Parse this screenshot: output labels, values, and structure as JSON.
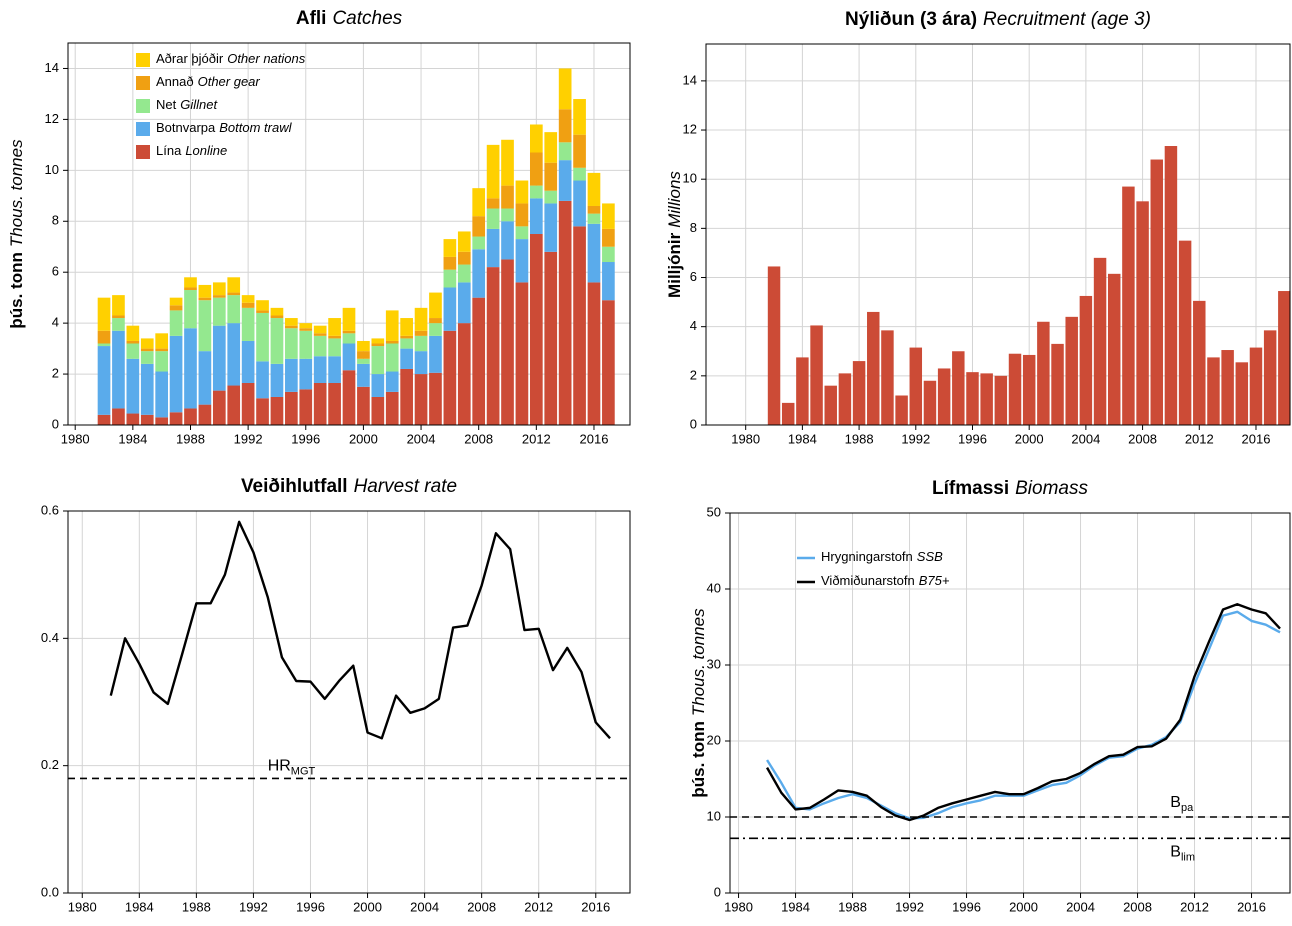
{
  "chart_data": [
    {
      "type": "bar",
      "stacked": true,
      "title_is": "Afli",
      "title_en": "Catches",
      "ylabel_is": "þús. tonn",
      "ylabel_en": "Thous. tonnes",
      "x": [
        1982,
        1983,
        1984,
        1985,
        1986,
        1987,
        1988,
        1989,
        1990,
        1991,
        1992,
        1993,
        1994,
        1995,
        1996,
        1997,
        1998,
        1999,
        2000,
        2001,
        2002,
        2003,
        2004,
        2005,
        2006,
        2007,
        2008,
        2009,
        2010,
        2011,
        2012,
        2013,
        2014,
        2015,
        2016,
        2017
      ],
      "series": [
        {
          "name": "Lína",
          "name_en": "Lonline",
          "color": "#cc4b36",
          "values": [
            0.4,
            0.65,
            0.45,
            0.4,
            0.3,
            0.5,
            0.65,
            0.8,
            1.35,
            1.55,
            1.65,
            1.05,
            1.1,
            1.3,
            1.4,
            1.65,
            1.65,
            2.15,
            1.5,
            1.1,
            1.3,
            2.2,
            2.0,
            2.05,
            3.7,
            4.0,
            5.0,
            6.2,
            6.5,
            5.6,
            7.5,
            6.8,
            8.8,
            7.8,
            5.6,
            4.9
          ]
        },
        {
          "name": "Botnvarpa",
          "name_en": "Bottom trawl",
          "color": "#5aabeb",
          "values": [
            2.7,
            3.05,
            2.15,
            2.0,
            1.8,
            3.0,
            3.15,
            2.1,
            2.55,
            2.45,
            1.65,
            1.45,
            1.3,
            1.3,
            1.2,
            1.05,
            1.05,
            1.05,
            0.9,
            0.9,
            0.8,
            0.8,
            0.9,
            1.45,
            1.7,
            1.6,
            1.9,
            1.5,
            1.5,
            1.7,
            1.4,
            1.9,
            1.6,
            1.8,
            2.3,
            1.5
          ]
        },
        {
          "name": "Net",
          "name_en": "Gillnet",
          "color": "#94e88f",
          "values": [
            0.1,
            0.5,
            0.6,
            0.5,
            0.8,
            1.0,
            1.5,
            2.0,
            1.1,
            1.1,
            1.3,
            1.9,
            1.8,
            1.2,
            1.1,
            0.8,
            0.7,
            0.4,
            0.2,
            1.1,
            1.1,
            0.4,
            0.6,
            0.5,
            0.7,
            0.7,
            0.5,
            0.8,
            0.5,
            0.5,
            0.5,
            0.5,
            0.7,
            0.5,
            0.4,
            0.6
          ]
        },
        {
          "name": "Annað",
          "name_en": "Other gear",
          "color": "#f0a012",
          "values": [
            0.5,
            0.1,
            0.1,
            0.1,
            0.1,
            0.2,
            0.1,
            0.1,
            0.1,
            0.1,
            0.2,
            0.1,
            0.1,
            0.1,
            0.1,
            0.1,
            0.1,
            0.1,
            0.3,
            0.1,
            0.1,
            0.1,
            0.2,
            0.2,
            0.5,
            0.5,
            0.8,
            0.4,
            0.9,
            0.9,
            1.3,
            1.1,
            1.3,
            1.3,
            0.3,
            0.7
          ]
        },
        {
          "name": "Aðrar þjóðir",
          "name_en": "Other nations",
          "color": "#ffd000",
          "values": [
            1.3,
            0.8,
            0.6,
            0.4,
            0.6,
            0.3,
            0.4,
            0.5,
            0.5,
            0.6,
            0.3,
            0.4,
            0.3,
            0.3,
            0.2,
            0.3,
            0.7,
            0.9,
            0.4,
            0.2,
            1.2,
            0.7,
            0.9,
            1.0,
            0.7,
            0.8,
            1.1,
            2.1,
            1.8,
            0.9,
            1.1,
            1.2,
            1.6,
            1.4,
            1.3,
            1.0
          ]
        }
      ],
      "xlim": [
        1979.5,
        2018.5
      ],
      "xticks": [
        1980,
        1984,
        1988,
        1992,
        1996,
        2000,
        2004,
        2008,
        2012,
        2016
      ],
      "ylim": [
        0,
        15
      ],
      "yticks": [
        0,
        2,
        4,
        6,
        8,
        10,
        12,
        14
      ],
      "grid": true,
      "legend": "upper left"
    },
    {
      "type": "bar",
      "title_is": "Nýliðun (3 ára)",
      "title_en": "Recruitment (age 3)",
      "ylabel_is": "Milljónir",
      "ylabel_en": "Millions",
      "x": [
        1982,
        1983,
        1984,
        1985,
        1986,
        1987,
        1988,
        1989,
        1990,
        1991,
        1992,
        1993,
        1994,
        1995,
        1996,
        1997,
        1998,
        1999,
        2000,
        2001,
        2002,
        2003,
        2004,
        2005,
        2006,
        2007,
        2008,
        2009,
        2010,
        2011,
        2012,
        2013,
        2014,
        2015,
        2016,
        2017,
        2018
      ],
      "values": [
        6.45,
        0.9,
        2.75,
        4.05,
        1.6,
        2.1,
        2.6,
        4.6,
        3.85,
        1.2,
        3.15,
        1.8,
        2.3,
        3.0,
        2.15,
        2.1,
        2.0,
        2.9,
        2.85,
        4.2,
        3.3,
        4.4,
        5.25,
        6.8,
        6.15,
        9.7,
        9.1,
        10.8,
        11.35,
        7.5,
        5.05,
        2.75,
        3.05,
        2.55,
        3.15,
        3.85,
        5.45
      ],
      "color": "#cc4b36",
      "xlim": [
        1977.2,
        2018.4
      ],
      "xticks": [
        1980,
        1984,
        1988,
        1992,
        1996,
        2000,
        2004,
        2008,
        2012,
        2016
      ],
      "ylim": [
        0,
        15.5
      ],
      "yticks": [
        0,
        2,
        4,
        6,
        8,
        10,
        12,
        14
      ],
      "grid": true
    },
    {
      "type": "line",
      "title_is": "Veiðihlutfall",
      "title_en": "Harvest rate",
      "x": [
        1982,
        1983,
        1984,
        1985,
        1986,
        1987,
        1988,
        1989,
        1990,
        1991,
        1992,
        1993,
        1994,
        1995,
        1996,
        1997,
        1998,
        1999,
        2000,
        2001,
        2002,
        2003,
        2004,
        2005,
        2006,
        2007,
        2008,
        2009,
        2010,
        2011,
        2012,
        2013,
        2014,
        2015,
        2016,
        2017
      ],
      "values": [
        0.31,
        0.4,
        0.36,
        0.315,
        0.297,
        0.375,
        0.455,
        0.455,
        0.5,
        0.583,
        0.535,
        0.465,
        0.37,
        0.333,
        0.332,
        0.305,
        0.333,
        0.357,
        0.252,
        0.243,
        0.31,
        0.283,
        0.29,
        0.305,
        0.417,
        0.42,
        0.483,
        0.565,
        0.54,
        0.413,
        0.415,
        0.35,
        0.385,
        0.347,
        0.268,
        0.243
      ],
      "color": "#000000",
      "ref_lines": [
        {
          "value": 0.18,
          "label": "HR",
          "sub": "MGT",
          "style": "dashed"
        }
      ],
      "xlim": [
        1979,
        2018.4
      ],
      "xticks": [
        1980,
        1984,
        1988,
        1992,
        1996,
        2000,
        2004,
        2008,
        2012,
        2016
      ],
      "ylim": [
        0,
        0.6
      ],
      "yticks": [
        {
          "value": 0,
          "label": "0.0"
        },
        0.2,
        0.4,
        0.6
      ],
      "grid": true
    },
    {
      "type": "line",
      "title_is": "Lífmassi",
      "title_en": "Biomass",
      "ylabel_is": "þús. tonn",
      "ylabel_en": "Thous. tonnes",
      "x": [
        1982,
        1983,
        1984,
        1985,
        1986,
        1987,
        1988,
        1989,
        1990,
        1991,
        1992,
        1993,
        1994,
        1995,
        1996,
        1997,
        1998,
        1999,
        2000,
        2001,
        2002,
        2003,
        2004,
        2005,
        2006,
        2007,
        2008,
        2009,
        2010,
        2011,
        2012,
        2013,
        2014,
        2015,
        2016,
        2017,
        2018
      ],
      "series": [
        {
          "name": "Hrygningarstofn",
          "name_en": "SSB",
          "color": "#5aabeb",
          "values": [
            17.5,
            14.5,
            11.2,
            11.0,
            11.8,
            12.5,
            13.0,
            12.5,
            11.5,
            10.5,
            9.8,
            9.9,
            10.5,
            11.3,
            11.8,
            12.2,
            12.8,
            12.8,
            12.8,
            13.5,
            14.2,
            14.5,
            15.5,
            16.8,
            17.8,
            18.0,
            19.0,
            19.5,
            20.5,
            22.5,
            27.5,
            32.0,
            36.5,
            37.0,
            35.8,
            35.3,
            34.3
          ]
        },
        {
          "name": "Viðmiðunarstofn",
          "name_en": "B75+",
          "color": "#000000",
          "values": [
            16.5,
            13.2,
            11.0,
            11.2,
            12.3,
            13.5,
            13.3,
            12.8,
            11.3,
            10.2,
            9.6,
            10.2,
            11.2,
            11.8,
            12.3,
            12.8,
            13.3,
            13.0,
            13.0,
            13.8,
            14.7,
            15.0,
            15.8,
            17.0,
            18.0,
            18.2,
            19.2,
            19.3,
            20.3,
            22.8,
            28.5,
            33.0,
            37.3,
            38.0,
            37.3,
            36.8,
            34.8
          ]
        }
      ],
      "ref_lines": [
        {
          "value": 10,
          "label": "B",
          "sub": "pa",
          "style": "dashed"
        },
        {
          "value": 7.2,
          "label": "B",
          "sub": "lim",
          "style": "dashdot"
        }
      ],
      "xlim": [
        1979.4,
        2018.7
      ],
      "xticks": [
        1980,
        1984,
        1988,
        1992,
        1996,
        2000,
        2004,
        2008,
        2012,
        2016
      ],
      "ylim": [
        0,
        50
      ],
      "yticks": [
        0,
        10,
        20,
        30,
        40,
        50
      ],
      "grid": true,
      "legend": "upper left"
    }
  ]
}
